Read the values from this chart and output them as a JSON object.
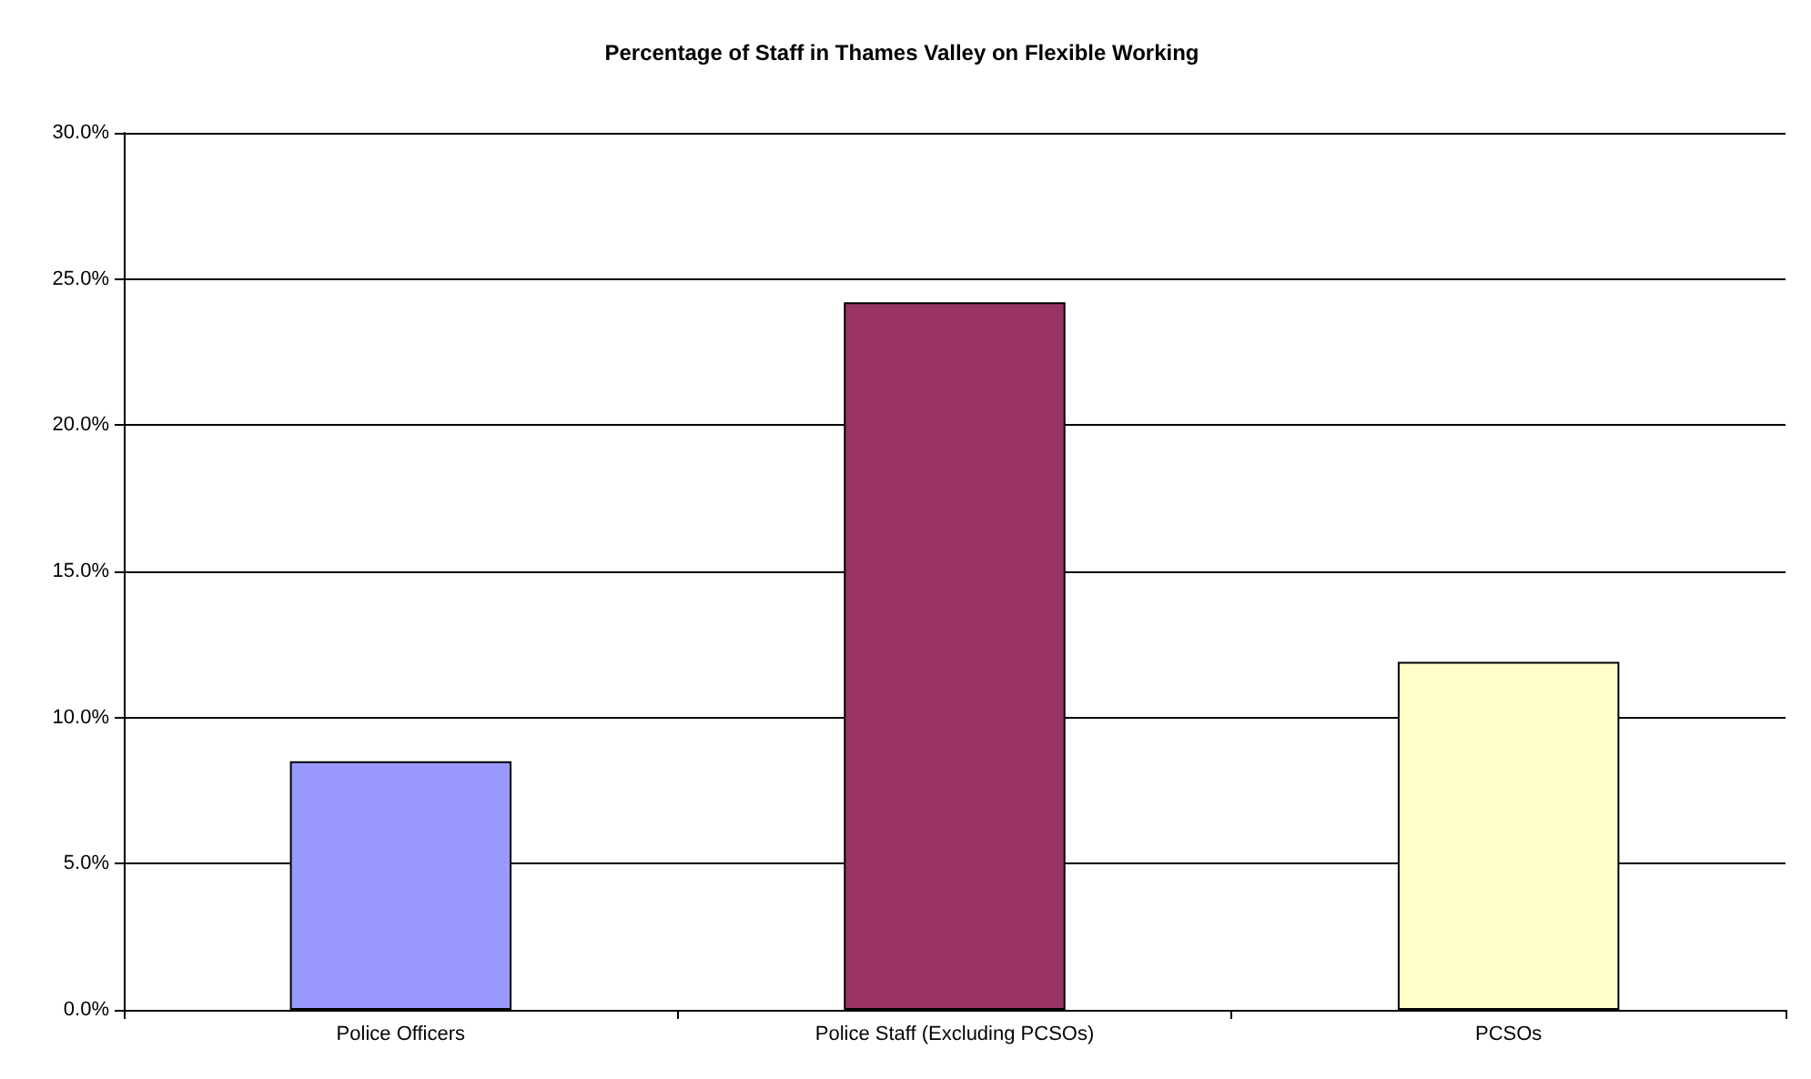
{
  "chart_data": {
    "type": "bar",
    "title": "Percentage of Staff in Thames Valley on Flexible Working",
    "categories": [
      "Police Officers",
      "Police Staff (Excluding PCSOs)",
      "PCSOs"
    ],
    "values": [
      8.5,
      24.2,
      11.9
    ],
    "colors": [
      "#9999ff",
      "#993366",
      "#ffffcc"
    ],
    "ylim": [
      0,
      30
    ],
    "yticks": [
      {
        "value": 0,
        "label": "0.0%"
      },
      {
        "value": 5,
        "label": "5.0%"
      },
      {
        "value": 10,
        "label": "10.0%"
      },
      {
        "value": 15,
        "label": "15.0%"
      },
      {
        "value": 20,
        "label": "20.0%"
      },
      {
        "value": 25,
        "label": "25.0%"
      },
      {
        "value": 30,
        "label": "30.0%"
      }
    ],
    "grid": "y"
  }
}
